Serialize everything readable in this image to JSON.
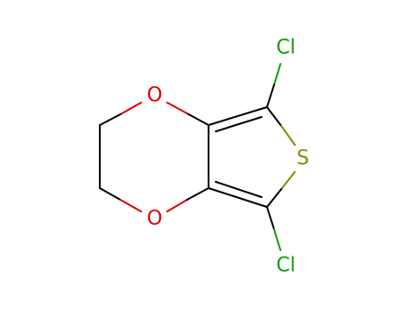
{
  "atoms": [
    {
      "label": "Cl"
    },
    {
      "label": "Cl"
    },
    {
      "label": "O"
    },
    {
      "label": "O"
    },
    {
      "label": "S"
    }
  ]
}
